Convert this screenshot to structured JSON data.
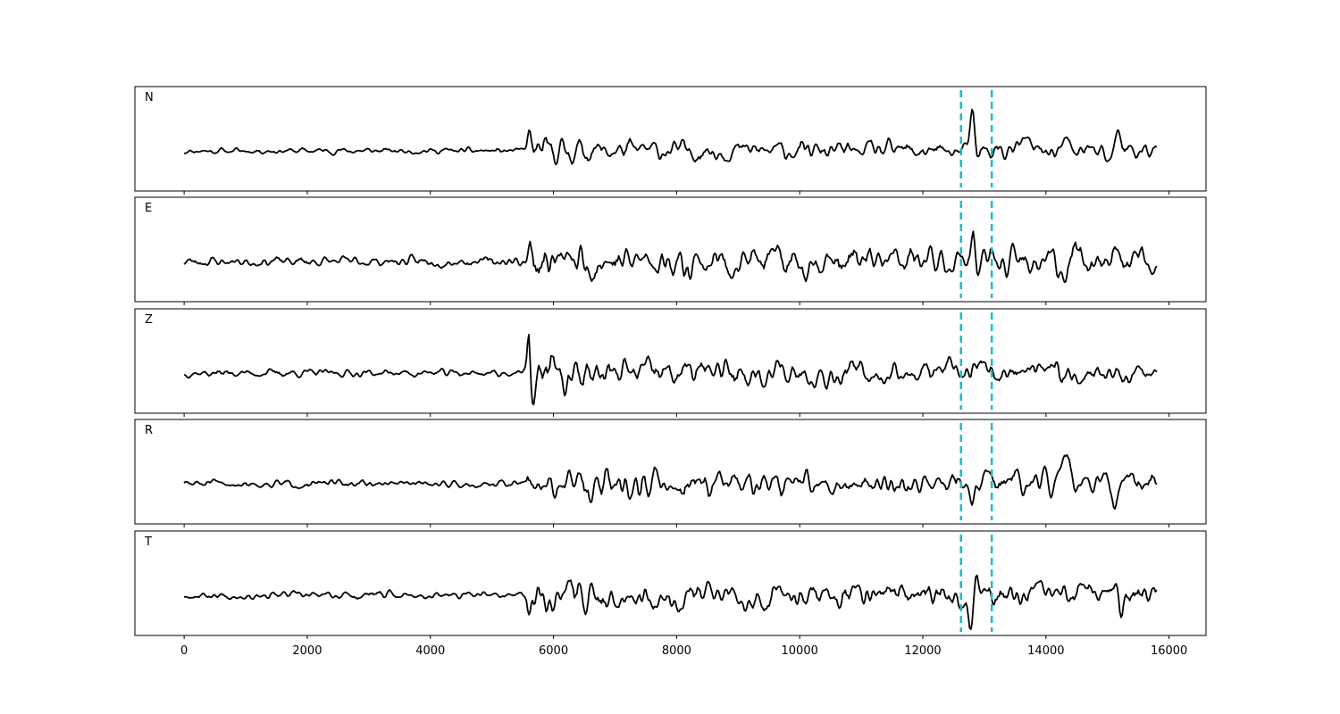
{
  "chart_data": {
    "type": "line",
    "title": "",
    "xlabel": "",
    "ylabel": "",
    "xlim": [
      -800,
      16600
    ],
    "x_ticks": [
      0,
      2000,
      4000,
      6000,
      8000,
      10000,
      12000,
      14000,
      16000
    ],
    "x_tick_labels": [
      "0",
      "2000",
      "4000",
      "6000",
      "8000",
      "10000",
      "12000",
      "14000",
      "16000"
    ],
    "x_range": [
      0,
      15800
    ],
    "marker_lines": [
      12620,
      13120
    ],
    "marker_color": "#17becf",
    "trace_color": "#000000",
    "grid": false,
    "panels": [
      {
        "label": "N",
        "noise": 0.055,
        "p_onset": 5600,
        "p_amp": 0.45,
        "coda_amp": 0.18,
        "bursts": [
          {
            "t": 12820,
            "amp": 0.95,
            "width": 45
          },
          {
            "t": 12860,
            "amp": -0.55,
            "width": 35
          },
          {
            "t": 13650,
            "amp": 0.3,
            "width": 60
          },
          {
            "t": 14320,
            "amp": 0.22,
            "width": 60
          },
          {
            "t": 15150,
            "amp": 0.45,
            "width": 70
          },
          {
            "t": 15050,
            "amp": -0.3,
            "width": 60
          }
        ],
        "seed": 11
      },
      {
        "label": "E",
        "noise": 0.09,
        "p_onset": 5600,
        "p_amp": 0.25,
        "coda_amp": 0.28,
        "bursts": [
          {
            "t": 12820,
            "amp": 0.9,
            "width": 40
          },
          {
            "t": 12880,
            "amp": -0.45,
            "width": 35
          },
          {
            "t": 14300,
            "amp": -0.55,
            "width": 60
          },
          {
            "t": 14450,
            "amp": 0.55,
            "width": 60
          },
          {
            "t": 15150,
            "amp": 0.4,
            "width": 60
          }
        ],
        "seed": 23
      },
      {
        "label": "Z",
        "noise": 0.07,
        "p_onset": 5600,
        "p_amp": 0.95,
        "coda_amp": 0.25,
        "bursts": [
          {
            "t": 5680,
            "amp": -0.65,
            "width": 40
          },
          {
            "t": 5980,
            "amp": 0.45,
            "width": 45
          },
          {
            "t": 6150,
            "amp": -0.45,
            "width": 45
          }
        ],
        "seed": 37
      },
      {
        "label": "R",
        "noise": 0.07,
        "p_onset": 5600,
        "p_amp": 0.25,
        "coda_amp": 0.25,
        "bursts": [
          {
            "t": 12800,
            "amp": -0.95,
            "width": 40
          },
          {
            "t": 12850,
            "amp": 0.5,
            "width": 40
          },
          {
            "t": 14320,
            "amp": 0.55,
            "width": 55
          },
          {
            "t": 15120,
            "amp": -0.5,
            "width": 60
          }
        ],
        "seed": 51
      },
      {
        "label": "T",
        "noise": 0.07,
        "p_onset": 5600,
        "p_amp": -0.45,
        "coda_amp": 0.25,
        "bursts": [
          {
            "t": 12790,
            "amp": -0.95,
            "width": 40
          },
          {
            "t": 12850,
            "amp": 0.55,
            "width": 40
          },
          {
            "t": 15100,
            "amp": 0.35,
            "width": 60
          },
          {
            "t": 15220,
            "amp": -0.45,
            "width": 60
          }
        ],
        "seed": 67
      }
    ]
  }
}
